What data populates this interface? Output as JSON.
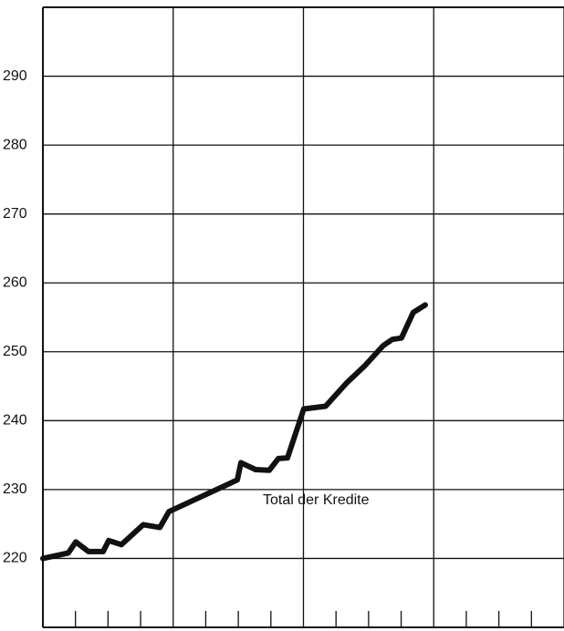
{
  "chart_data": {
    "type": "line",
    "annotation": "Total der Kredite",
    "series": [
      {
        "name": "Total der Kredite",
        "color": "#111111",
        "x": [
          0,
          0.78,
          1.01,
          1.4,
          1.85,
          2.02,
          2.41,
          3.08,
          3.59,
          3.87,
          5.97,
          6.08,
          6.53,
          6.95,
          7.23,
          7.51,
          8.01,
          8.68,
          9.33,
          9.89,
          10.45,
          10.73,
          11.01,
          11.37,
          11.74
        ],
        "values": [
          220.0,
          220.8,
          222.4,
          221.0,
          221.0,
          222.6,
          222.0,
          224.9,
          224.5,
          226.8,
          231.4,
          233.9,
          232.9,
          232.8,
          234.5,
          234.6,
          241.7,
          242.1,
          245.5,
          248.0,
          250.9,
          251.8,
          252.0,
          255.7,
          256.8
        ]
      }
    ],
    "xlim": [
      0,
      16
    ],
    "xticks": [
      0,
      1,
      2,
      3,
      4,
      5,
      6,
      7,
      8,
      9,
      10,
      11,
      12,
      13,
      14,
      15,
      16
    ],
    "ylim": [
      210,
      300
    ],
    "yticks": [
      220,
      230,
      240,
      250,
      260,
      270,
      280,
      290
    ],
    "grid": true
  }
}
